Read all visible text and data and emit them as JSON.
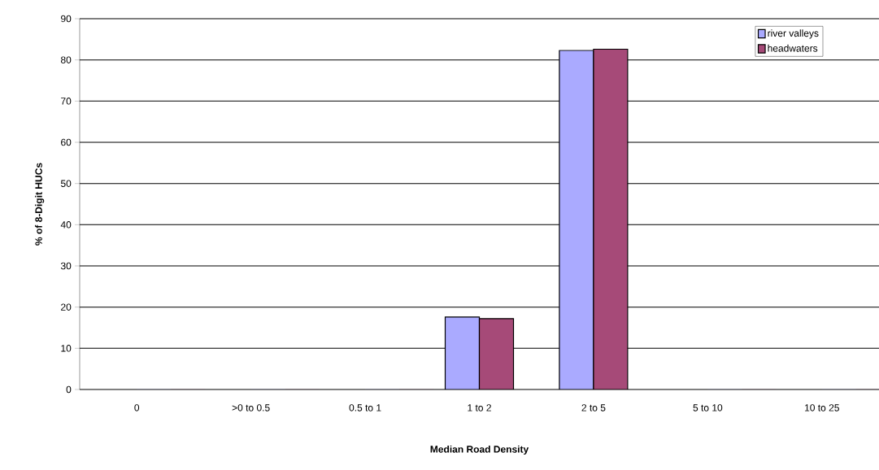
{
  "chart_data": {
    "type": "bar",
    "xlabel": "Median Road Density",
    "ylabel": "% of 8-Digit HUCs",
    "categories": [
      "0",
      ">0 to 0.5",
      "0.5 to 1",
      "1 to 2",
      "2 to 5",
      "5 to 10",
      "10 to 25"
    ],
    "series": [
      {
        "name": "river valleys",
        "color": "#aaaaff",
        "values": [
          0,
          0,
          0,
          17.6,
          82.3,
          0,
          0
        ]
      },
      {
        "name": "headwaters",
        "color": "#a64a78",
        "values": [
          0,
          0,
          0,
          17.2,
          82.6,
          0,
          0
        ]
      }
    ],
    "ylim": [
      0,
      90
    ],
    "yticks": [
      0,
      10,
      20,
      30,
      40,
      50,
      60,
      70,
      80,
      90
    ],
    "grid": "y",
    "legend": "top right"
  }
}
